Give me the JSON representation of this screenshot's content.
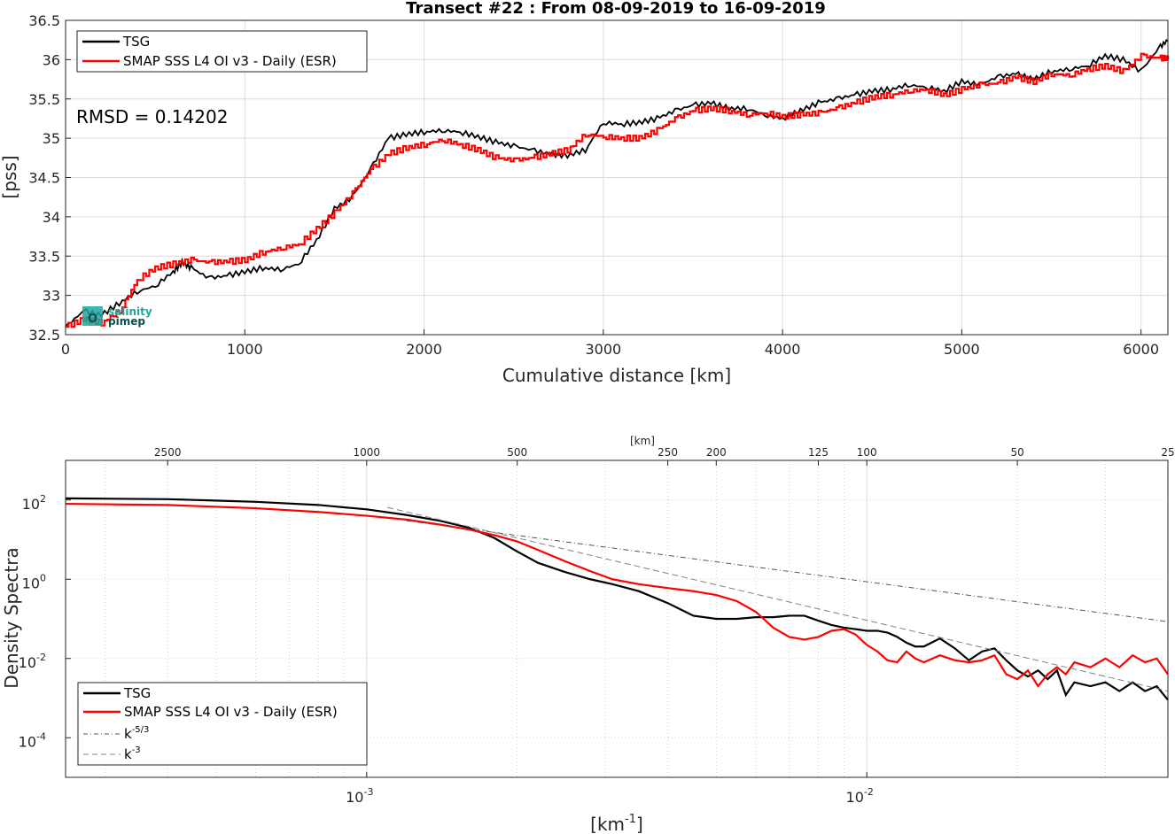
{
  "chart_data": [
    {
      "type": "line",
      "title": "Transect #22 : From 08-09-2019 to 16-09-2019",
      "xlabel": "Cumulative distance [km]",
      "ylabel": "[pss]",
      "xlim": [
        0,
        6150
      ],
      "ylim": [
        32.5,
        36.5
      ],
      "xticks": [
        0,
        1000,
        2000,
        3000,
        4000,
        5000,
        6000
      ],
      "yticks": [
        32.5,
        33,
        33.5,
        34,
        34.5,
        35,
        35.5,
        36,
        36.5
      ],
      "grid": true,
      "legend_position": "top-left",
      "annotation": "RMSD = 0.14202",
      "logo": {
        "line1": "salinity",
        "line2": "pimep"
      },
      "series": [
        {
          "name": "TSG",
          "color": "#000000",
          "x": [
            0,
            100,
            200,
            300,
            400,
            500,
            600,
            650,
            700,
            800,
            900,
            1000,
            1100,
            1200,
            1300,
            1400,
            1500,
            1600,
            1700,
            1800,
            1900,
            2000,
            2100,
            2200,
            2300,
            2400,
            2500,
            2600,
            2700,
            2800,
            2900,
            3000,
            3100,
            3200,
            3300,
            3400,
            3500,
            3600,
            3700,
            3800,
            3900,
            4000,
            4100,
            4200,
            4300,
            4400,
            4500,
            4600,
            4700,
            4800,
            4900,
            5000,
            5100,
            5200,
            5300,
            5400,
            5500,
            5600,
            5700,
            5800,
            5900,
            6000,
            6100,
            6150
          ],
          "y": [
            32.6,
            32.8,
            32.75,
            32.9,
            33.05,
            33.12,
            33.3,
            33.42,
            33.35,
            33.22,
            33.25,
            33.3,
            33.35,
            33.33,
            33.4,
            33.7,
            34.1,
            34.25,
            34.6,
            35.0,
            35.05,
            35.08,
            35.1,
            35.08,
            35.02,
            34.95,
            34.9,
            34.85,
            34.8,
            34.78,
            34.85,
            35.2,
            35.18,
            35.2,
            35.25,
            35.35,
            35.42,
            35.45,
            35.38,
            35.38,
            35.3,
            35.25,
            35.35,
            35.45,
            35.5,
            35.55,
            35.6,
            35.62,
            35.68,
            35.65,
            35.6,
            35.72,
            35.68,
            35.78,
            35.82,
            35.75,
            35.85,
            35.88,
            35.92,
            36.05,
            36.0,
            35.85,
            36.15,
            36.25
          ]
        },
        {
          "name": "SMAP SSS L4 OI v3 - Daily (ESR)",
          "color": "#ff0000",
          "x": [
            0,
            100,
            200,
            300,
            400,
            500,
            600,
            700,
            800,
            900,
            1000,
            1100,
            1200,
            1300,
            1400,
            1500,
            1600,
            1700,
            1800,
            1900,
            2000,
            2100,
            2200,
            2300,
            2400,
            2500,
            2600,
            2700,
            2800,
            2900,
            3000,
            3100,
            3200,
            3300,
            3400,
            3500,
            3600,
            3700,
            3800,
            3900,
            4000,
            4100,
            4200,
            4300,
            4400,
            4500,
            4600,
            4700,
            4800,
            4900,
            5000,
            5100,
            5200,
            5300,
            5400,
            5500,
            5600,
            5700,
            5800,
            5900,
            6000,
            6100,
            6150
          ],
          "y": [
            32.6,
            32.7,
            32.65,
            32.8,
            33.2,
            33.35,
            33.4,
            33.45,
            33.42,
            33.43,
            33.45,
            33.55,
            33.6,
            33.65,
            33.85,
            34.05,
            34.3,
            34.6,
            34.8,
            34.88,
            34.92,
            34.98,
            34.92,
            34.85,
            34.75,
            34.72,
            34.75,
            34.8,
            34.85,
            35.05,
            35.02,
            35.0,
            35.0,
            35.1,
            35.25,
            35.35,
            35.38,
            35.35,
            35.3,
            35.32,
            35.28,
            35.3,
            35.32,
            35.38,
            35.45,
            35.52,
            35.55,
            35.6,
            35.62,
            35.55,
            35.62,
            35.68,
            35.7,
            35.78,
            35.72,
            35.82,
            35.8,
            35.88,
            35.92,
            35.85,
            36.05,
            36.02,
            36.02
          ]
        }
      ]
    },
    {
      "type": "line",
      "title": "",
      "xlabel": "[km-1]",
      "xlabel_parts": {
        "base": "[km",
        "sup": "-1",
        "end": "]"
      },
      "ylabel": "Density Spectra",
      "x_scale": "log",
      "y_scale": "log",
      "xlim": [
        0.00025,
        0.04
      ],
      "ylim": [
        1e-05,
        1000
      ],
      "xticks": [
        {
          "value": 0.001,
          "base": "10",
          "exp": "-3"
        },
        {
          "value": 0.01,
          "base": "10",
          "exp": "-2"
        }
      ],
      "yticks": [
        {
          "value": 0.0001,
          "base": "10",
          "exp": "-4"
        },
        {
          "value": 0.01,
          "base": "10",
          "exp": "-2"
        },
        {
          "value": 1,
          "base": "10",
          "exp": "0"
        },
        {
          "value": 100,
          "base": "10",
          "exp": "2"
        }
      ],
      "top_axis_label": "[km]",
      "top_ticks_km": [
        2500,
        1000,
        500,
        250,
        200,
        125,
        100,
        50,
        25
      ],
      "grid": true,
      "legend_position": "bottom-left",
      "series": [
        {
          "name": "TSG",
          "color": "#000000",
          "x": [
            0.00025,
            0.0004,
            0.0006,
            0.0008,
            0.001,
            0.0012,
            0.0014,
            0.0016,
            0.0018,
            0.002,
            0.0022,
            0.0025,
            0.0028,
            0.0031,
            0.0035,
            0.004,
            0.0045,
            0.005,
            0.0055,
            0.006,
            0.0065,
            0.007,
            0.0075,
            0.008,
            0.0085,
            0.009,
            0.0095,
            0.01,
            0.0105,
            0.011,
            0.0115,
            0.012,
            0.0125,
            0.013,
            0.014,
            0.015,
            0.016,
            0.017,
            0.018,
            0.019,
            0.02,
            0.021,
            0.022,
            0.023,
            0.024,
            0.025,
            0.026,
            0.028,
            0.03,
            0.032,
            0.034,
            0.036,
            0.038,
            0.04
          ],
          "y": [
            110,
            105,
            90,
            75,
            58,
            42,
            30,
            20,
            11,
            5,
            2.6,
            1.5,
            1.0,
            0.75,
            0.5,
            0.25,
            0.12,
            0.1,
            0.1,
            0.11,
            0.11,
            0.12,
            0.12,
            0.09,
            0.07,
            0.06,
            0.055,
            0.05,
            0.05,
            0.045,
            0.035,
            0.025,
            0.02,
            0.02,
            0.032,
            0.018,
            0.009,
            0.015,
            0.018,
            0.009,
            0.005,
            0.0035,
            0.005,
            0.003,
            0.005,
            0.0012,
            0.0025,
            0.002,
            0.0025,
            0.0015,
            0.0025,
            0.0015,
            0.002,
            0.0009
          ]
        },
        {
          "name": "SMAP SSS L4 OI v3 - Daily (ESR)",
          "color": "#ff0000",
          "x": [
            0.00025,
            0.0004,
            0.0006,
            0.0008,
            0.001,
            0.0012,
            0.0014,
            0.0016,
            0.0018,
            0.002,
            0.0022,
            0.0025,
            0.0028,
            0.0031,
            0.0035,
            0.004,
            0.0045,
            0.005,
            0.0055,
            0.006,
            0.0065,
            0.007,
            0.0075,
            0.008,
            0.0085,
            0.009,
            0.0095,
            0.01,
            0.0105,
            0.011,
            0.0115,
            0.012,
            0.0125,
            0.013,
            0.014,
            0.015,
            0.016,
            0.017,
            0.018,
            0.019,
            0.02,
            0.021,
            0.022,
            0.023,
            0.024,
            0.025,
            0.026,
            0.028,
            0.03,
            0.032,
            0.034,
            0.036,
            0.038,
            0.04
          ],
          "y": [
            80,
            75,
            62,
            50,
            40,
            32,
            24,
            18,
            13,
            9,
            5.5,
            2.8,
            1.6,
            1.0,
            0.75,
            0.6,
            0.5,
            0.4,
            0.28,
            0.15,
            0.06,
            0.035,
            0.03,
            0.035,
            0.05,
            0.055,
            0.04,
            0.022,
            0.015,
            0.009,
            0.008,
            0.015,
            0.01,
            0.008,
            0.012,
            0.009,
            0.008,
            0.009,
            0.012,
            0.004,
            0.003,
            0.005,
            0.002,
            0.004,
            0.006,
            0.004,
            0.008,
            0.006,
            0.01,
            0.006,
            0.012,
            0.008,
            0.01,
            0.004
          ]
        },
        {
          "name": "k-5/3",
          "name_parts": {
            "base": "k",
            "sup": "-5/3"
          },
          "color": "#555555",
          "dash": "dash-dot",
          "x": [
            0.0012,
            0.04
          ],
          "y": [
            30,
            0.085
          ]
        },
        {
          "name": "k-3",
          "name_parts": {
            "base": "k",
            "sup": "-3"
          },
          "color": "#808080",
          "dash": "dashed",
          "x": [
            0.0011,
            0.04
          ],
          "y": [
            65,
            0.0015
          ]
        }
      ]
    }
  ]
}
